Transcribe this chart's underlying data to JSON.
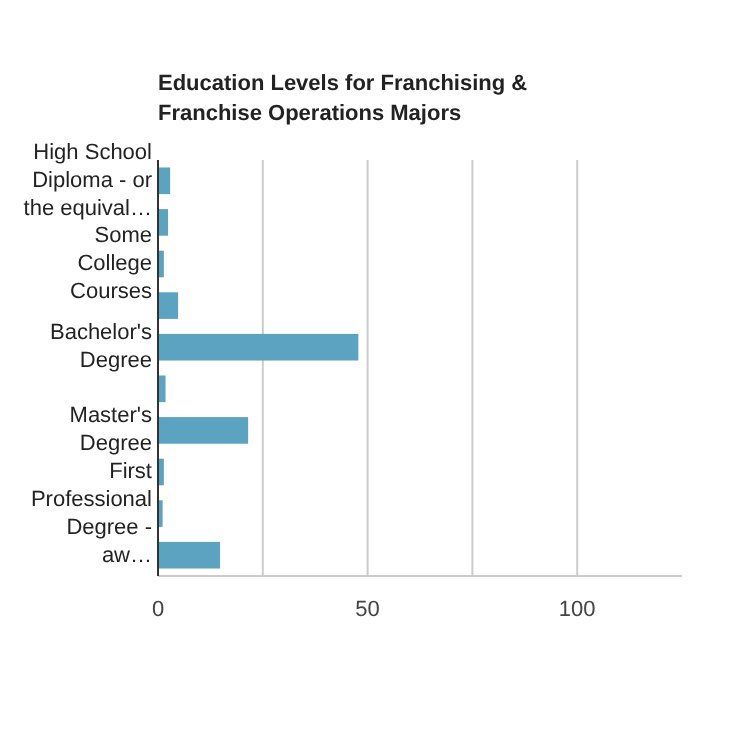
{
  "chart_data": {
    "type": "bar",
    "orientation": "horizontal",
    "title": "Education Levels for Franchising & Franchise Operations Majors",
    "categories": [
      "High School Diploma - or the equival…",
      null,
      "Some College Courses",
      null,
      "Bachelor's Degree",
      null,
      "Master's Degree",
      null,
      "First Professional Degree - aw…",
      null
    ],
    "values": [
      2.9,
      2.4,
      1.4,
      4.8,
      47.8,
      1.8,
      21.5,
      1.4,
      1.1,
      14.8
    ],
    "color": "#5ba3c0",
    "xlim": [
      0,
      125
    ],
    "xticks": [
      0,
      {
        "value": 25,
        "label": null
      },
      50,
      {
        "value": 75,
        "label": null
      },
      100
    ],
    "grid": "x"
  }
}
